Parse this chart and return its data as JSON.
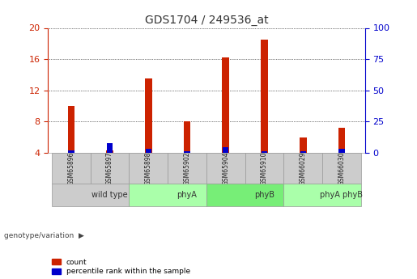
{
  "title": "GDS1704 / 249536_at",
  "samples": [
    "GSM65896",
    "GSM65897",
    "GSM65898",
    "GSM65902",
    "GSM65904",
    "GSM65910",
    "GSM66029",
    "GSM66030"
  ],
  "count_values": [
    10.0,
    4.3,
    13.5,
    8.0,
    16.2,
    18.5,
    6.0,
    7.2
  ],
  "percentile_values": [
    4.3,
    5.2,
    4.5,
    4.2,
    4.7,
    4.2,
    4.2,
    4.5
  ],
  "groups": [
    {
      "label": "wild type",
      "start": 0,
      "end": 2,
      "color": "#cccccc"
    },
    {
      "label": "phyA",
      "start": 2,
      "end": 4,
      "color": "#aaffaa"
    },
    {
      "label": "phyB",
      "start": 4,
      "end": 6,
      "color": "#77ee77"
    },
    {
      "label": "phyA phyB",
      "start": 6,
      "end": 8,
      "color": "#aaffaa"
    }
  ],
  "ylim_left": [
    4,
    20
  ],
  "ylim_right": [
    0,
    100
  ],
  "yticks_left": [
    4,
    8,
    12,
    16,
    20
  ],
  "yticks_right": [
    0,
    25,
    50,
    75,
    100
  ],
  "bar_color_red": "#cc2200",
  "bar_color_blue": "#0000cc",
  "bar_width": 0.18,
  "left_axis_color": "#cc2200",
  "right_axis_color": "#0000cc",
  "genotype_label": "genotype/variation",
  "legend_count": "count",
  "legend_percentile": "percentile rank within the sample",
  "bg_color": "#ffffff",
  "plot_bg": "#ffffff",
  "grid_color": "#000000",
  "sample_bg": "#cccccc",
  "title_fontsize": 10
}
